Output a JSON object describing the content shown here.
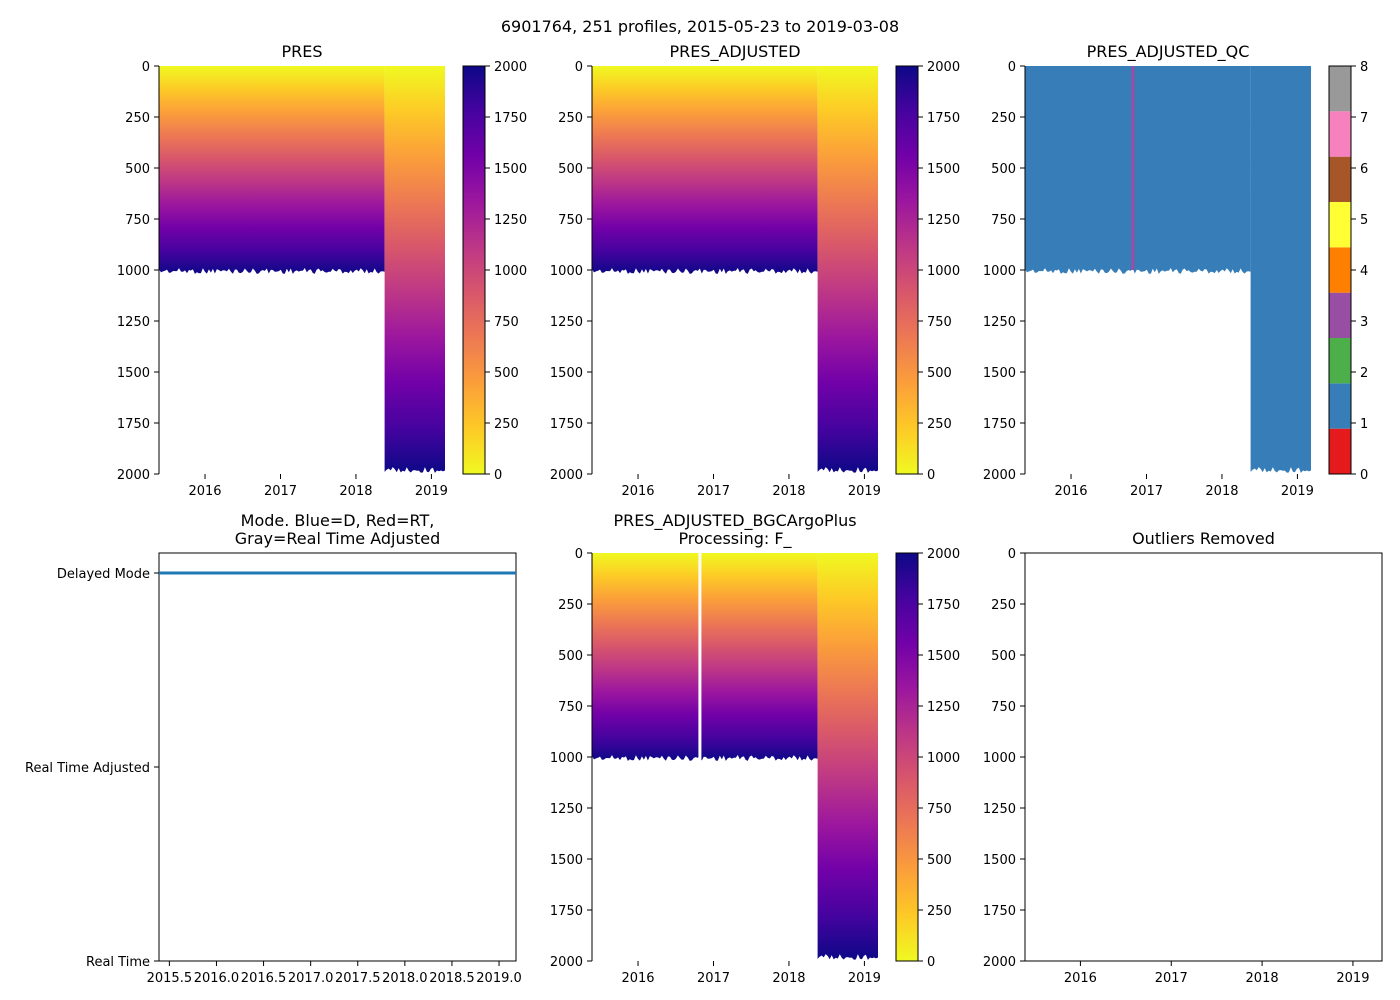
{
  "suptitle": "6901764, 251 profiles, 2015-05-23 to 2019-03-08",
  "colors": {
    "plasma": [
      "#0d0887",
      "#46039f",
      "#7201a8",
      "#9c179e",
      "#bd3786",
      "#d8576b",
      "#ed7953",
      "#fb9f3a",
      "#fdca26",
      "#f0f921"
    ],
    "qc_colors": [
      "#e41a1c",
      "#377eb8",
      "#4daf4a",
      "#984ea3",
      "#ff7f00",
      "#ffff33",
      "#a65628",
      "#f781bf",
      "#999999"
    ],
    "mode_line": "#1f77b4",
    "qc_anomaly": "#984ea3"
  },
  "chart_data": [
    {
      "id": "pres",
      "type": "heatmap",
      "title": "PRES",
      "variable": "PRES",
      "colormap": "plasma_r",
      "x_range": [
        2015.39,
        2019.18
      ],
      "x_ticks": [
        "2016",
        "2017",
        "2018",
        "2019"
      ],
      "y_range": [
        0,
        2000
      ],
      "y_inverted": true,
      "y_ticks": [
        "0",
        "250",
        "500",
        "750",
        "1000",
        "1250",
        "1500",
        "1750",
        "2000"
      ],
      "colorbar_range": [
        0,
        2000
      ],
      "colorbar_ticks": [
        "0",
        "250",
        "500",
        "750",
        "1000",
        "1250",
        "1500",
        "1750",
        "2000"
      ],
      "profile_segments": [
        {
          "start": 2015.39,
          "end": 2018.38,
          "max_depth": 1000
        },
        {
          "start": 2018.38,
          "end": 2019.18,
          "max_depth": 1975
        }
      ]
    },
    {
      "id": "pres_adjusted",
      "type": "heatmap",
      "title": "PRES_ADJUSTED",
      "variable": "PRES_ADJUSTED",
      "colormap": "plasma_r",
      "x_range": [
        2015.39,
        2019.18
      ],
      "x_ticks": [
        "2016",
        "2017",
        "2018",
        "2019"
      ],
      "y_range": [
        0,
        2000
      ],
      "y_inverted": true,
      "y_ticks": [
        "0",
        "250",
        "500",
        "750",
        "1000",
        "1250",
        "1500",
        "1750",
        "2000"
      ],
      "colorbar_range": [
        0,
        2000
      ],
      "colorbar_ticks": [
        "0",
        "250",
        "500",
        "750",
        "1000",
        "1250",
        "1500",
        "1750",
        "2000"
      ],
      "profile_segments": [
        {
          "start": 2015.39,
          "end": 2018.38,
          "max_depth": 1000
        },
        {
          "start": 2018.38,
          "end": 2019.18,
          "max_depth": 1975
        }
      ]
    },
    {
      "id": "pres_adjusted_qc",
      "type": "heatmap",
      "title": "PRES_ADJUSTED_QC",
      "variable": "PRES_ADJUSTED_QC",
      "colormap": "qc_categorical",
      "x_range": [
        2015.39,
        2019.18
      ],
      "x_ticks": [
        "2016",
        "2017",
        "2018",
        "2019"
      ],
      "y_range": [
        0,
        2000
      ],
      "y_inverted": true,
      "y_ticks": [
        "0",
        "250",
        "500",
        "750",
        "1000",
        "1250",
        "1500",
        "1750",
        "2000"
      ],
      "qc_value": 1,
      "qc_anomaly": {
        "year": 2016.82,
        "qc_value": 3
      },
      "colorbar_range": [
        0,
        8
      ],
      "colorbar_ticks": [
        "0",
        "1",
        "2",
        "3",
        "4",
        "5",
        "6",
        "7",
        "8"
      ],
      "profile_segments": [
        {
          "start": 2015.39,
          "end": 2018.38,
          "max_depth": 1000
        },
        {
          "start": 2018.38,
          "end": 2019.18,
          "max_depth": 1975
        }
      ]
    },
    {
      "id": "mode",
      "type": "line",
      "title": "Mode. Blue=D, Red=RT,",
      "title_line2": "Gray=Real Time Adjusted",
      "x_range": [
        2015.39,
        2019.18
      ],
      "x_ticks": [
        "2015.5",
        "2016.0",
        "2016.5",
        "2017.0",
        "2017.5",
        "2018.0",
        "2018.5",
        "2019.0"
      ],
      "y_categories": [
        "Real Time",
        "Real Time Adjusted",
        "Delayed Mode"
      ],
      "series": [
        {
          "name": "D",
          "level": "Delayed Mode",
          "x": [
            2015.39,
            2019.18
          ]
        }
      ]
    },
    {
      "id": "pres_bgc",
      "type": "heatmap",
      "title": "PRES_ADJUSTED_BGCArgoPlus",
      "title_line2": "Processing: F_",
      "variable": "PRES_ADJUSTED",
      "colormap": "plasma_r",
      "x_range": [
        2015.39,
        2019.18
      ],
      "x_ticks": [
        "2016",
        "2017",
        "2018",
        "2019"
      ],
      "y_range": [
        0,
        2000
      ],
      "y_inverted": true,
      "y_ticks": [
        "0",
        "250",
        "500",
        "750",
        "1000",
        "1250",
        "1500",
        "1750",
        "2000"
      ],
      "colorbar_range": [
        0,
        2000
      ],
      "colorbar_ticks": [
        "0",
        "250",
        "500",
        "750",
        "1000",
        "1250",
        "1500",
        "1750",
        "2000"
      ],
      "gap_year": 2016.82,
      "profile_segments": [
        {
          "start": 2015.39,
          "end": 2018.38,
          "max_depth": 1000
        },
        {
          "start": 2018.38,
          "end": 2019.18,
          "max_depth": 1975
        }
      ]
    },
    {
      "id": "outliers",
      "type": "scatter",
      "title": "Outliers Removed",
      "x_range": [
        2015.39,
        2019.32
      ],
      "x_ticks": [
        "2016",
        "2017",
        "2018",
        "2019"
      ],
      "y_range": [
        0,
        2000
      ],
      "y_inverted": true,
      "y_ticks": [
        "0",
        "250",
        "500",
        "750",
        "1000",
        "1250",
        "1500",
        "1750",
        "2000"
      ],
      "points": []
    }
  ]
}
